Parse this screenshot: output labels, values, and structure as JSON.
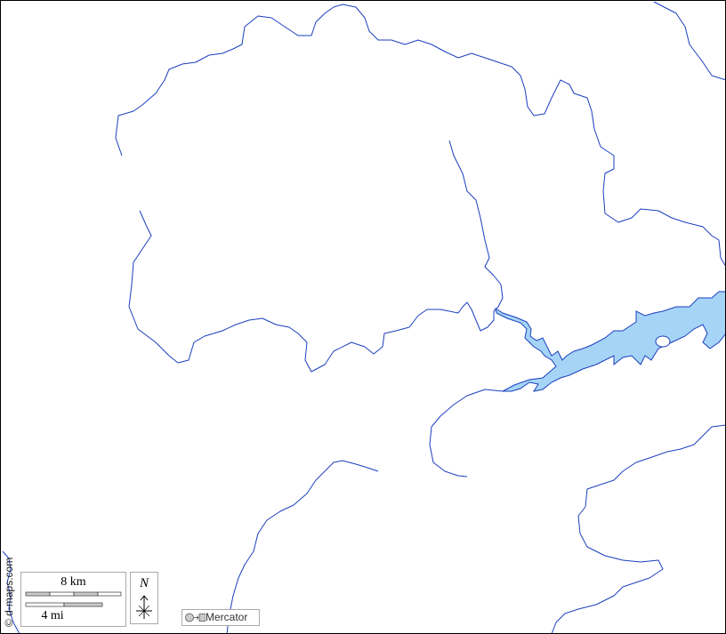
{
  "map": {
    "colors": {
      "river": "#1a3fbf",
      "water_fill": "#a6d4f7",
      "background": "#ffffff"
    },
    "scale_bar": {
      "km_label": "8 km",
      "mi_label": "4 mi"
    },
    "north_arrow": {
      "label": "N"
    },
    "projection": {
      "label": "Mercator",
      "icon": "circle-to-square-icon"
    },
    "credit": "© d-maps.com"
  }
}
